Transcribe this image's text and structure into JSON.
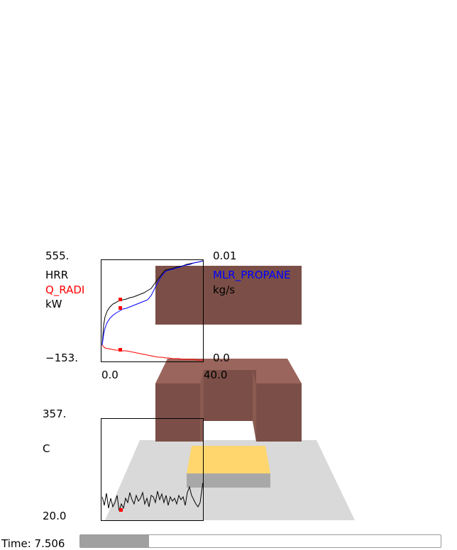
{
  "colors": {
    "hrr": "#000000",
    "q_radi": "#ff0000",
    "mlr": "#0000ff",
    "obstruction": "#7b4f47",
    "obstruction_top": "#9a655c",
    "burner": "#ffd66e",
    "burner_side": "#a8a8a8",
    "floor": "#d9d9d9",
    "time_fill": "#a0a0a0"
  },
  "plot1": {
    "y_max": "555.",
    "y_min": "−153.",
    "x_min": "0.0",
    "x_max": "40.0",
    "left_labels": {
      "hrr": "HRR",
      "q_radi": "Q_RADI",
      "unit": "kW"
    },
    "right_y_max": "0.01",
    "right_y_min": "0.0",
    "right_labels": {
      "mlr": "MLR_PROPANE",
      "unit": "kg/s"
    },
    "current_time_fraction": 0.19
  },
  "plot2": {
    "y_max": "357.",
    "y_min": "20.0",
    "unit": "C",
    "current_time_fraction": 0.19
  },
  "status": {
    "time_label": "Time: 7.506",
    "progress": 0.19
  }
}
